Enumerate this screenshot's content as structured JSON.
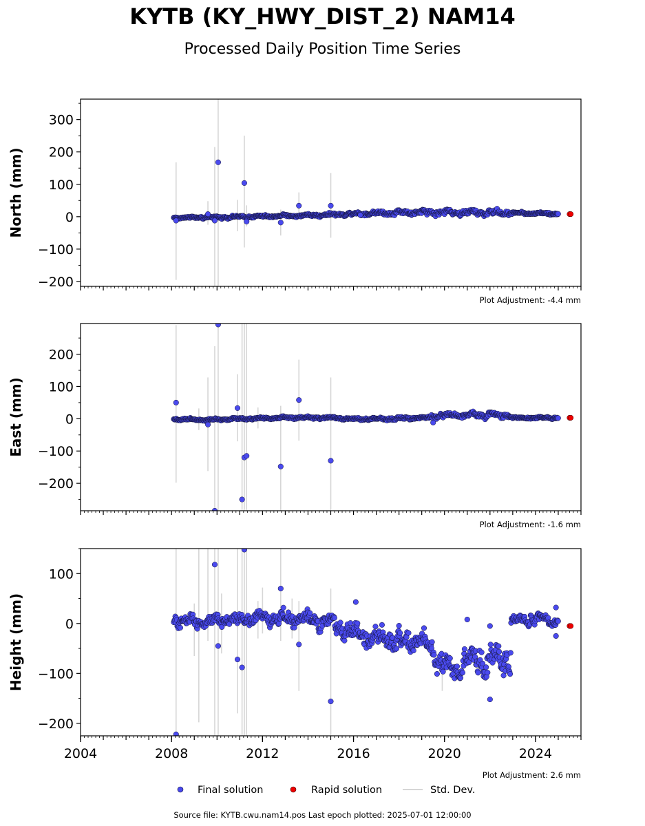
{
  "title": "KYTB (KY_HWY_DIST_2) NAM14",
  "subtitle": "Processed Daily Position Time Series",
  "legend": {
    "final": "Final solution",
    "rapid": "Rapid solution",
    "std": "Std. Dev."
  },
  "source": "Source file: KYTB.cwu.nam14.pos  Last epoch plotted: 2025-07-01 12:00:00",
  "colors": {
    "final": "#4a4aee",
    "rapid": "#ee0000",
    "std": "#d6d6d6",
    "edge": "#111133"
  },
  "chart_data": [
    {
      "type": "scatter",
      "ylabel": "North (mm)",
      "adjustment": "Plot Adjustment: -4.4 mm",
      "xlim": [
        2004,
        2026
      ],
      "ylim": [
        -215,
        363
      ],
      "yticks": [
        -200,
        -100,
        0,
        100,
        200,
        300
      ],
      "ytick_labels": [
        "−200",
        "−100",
        "0",
        "100",
        "200",
        "300"
      ],
      "trend": [
        [
          2008.1,
          -3
        ],
        [
          2010,
          -2
        ],
        [
          2012,
          1
        ],
        [
          2014,
          4
        ],
        [
          2016,
          9
        ],
        [
          2018,
          13
        ],
        [
          2019.5,
          14
        ],
        [
          2021,
          13
        ],
        [
          2022.8,
          12
        ],
        [
          2025.0,
          9
        ]
      ],
      "noise": [
        [
          2008.1,
          2.5
        ],
        [
          2016,
          4
        ],
        [
          2019.3,
          7
        ],
        [
          2022.8,
          7
        ],
        [
          2023.0,
          3
        ],
        [
          2025.0,
          3
        ]
      ],
      "outliers": [
        [
          2008.2,
          -12
        ],
        [
          2009.6,
          8
        ],
        [
          2009.9,
          -12
        ],
        [
          2010.05,
          168
        ],
        [
          2011.2,
          104
        ],
        [
          2011.3,
          -15
        ],
        [
          2012.8,
          -18
        ],
        [
          2013.6,
          34
        ],
        [
          2015.0,
          34
        ],
        [
          2016.3,
          5
        ]
      ],
      "std_bars": [
        [
          2008.2,
          -195,
          168
        ],
        [
          2009.6,
          -25,
          48
        ],
        [
          2009.9,
          -215,
          215
        ],
        [
          2010.05,
          -215,
          363
        ],
        [
          2010.9,
          -45,
          52
        ],
        [
          2011.2,
          -95,
          250
        ],
        [
          2011.3,
          -30,
          35
        ],
        [
          2012.8,
          -58,
          22
        ],
        [
          2013.6,
          -10,
          75
        ],
        [
          2015.0,
          -65,
          135
        ]
      ],
      "rapid": [
        [
          2025.5,
          8
        ],
        [
          2025.55,
          8
        ]
      ]
    },
    {
      "type": "scatter",
      "ylabel": "East (mm)",
      "adjustment": "Plot Adjustment: -1.6 mm",
      "xlim": [
        2004,
        2026
      ],
      "ylim": [
        -285,
        295
      ],
      "yticks": [
        -200,
        -100,
        0,
        100,
        200
      ],
      "ytick_labels": [
        "−200",
        "−100",
        "0",
        "100",
        "200"
      ],
      "trend": [
        [
          2008.1,
          -1
        ],
        [
          2009.5,
          -3
        ],
        [
          2011,
          0
        ],
        [
          2013,
          3
        ],
        [
          2015,
          3
        ],
        [
          2016,
          -1
        ],
        [
          2017.5,
          0
        ],
        [
          2019.2,
          3
        ],
        [
          2019.5,
          10
        ],
        [
          2021,
          12
        ],
        [
          2022.8,
          11
        ],
        [
          2023.0,
          3
        ],
        [
          2025.0,
          3
        ]
      ],
      "noise": [
        [
          2008.1,
          2.5
        ],
        [
          2019.2,
          3.5
        ],
        [
          2019.4,
          7
        ],
        [
          2022.8,
          7
        ],
        [
          2023.0,
          2.5
        ],
        [
          2025.0,
          2.5
        ]
      ],
      "outliers": [
        [
          2008.2,
          50
        ],
        [
          2009.6,
          -18
        ],
        [
          2009.9,
          -285
        ],
        [
          2010.05,
          292
        ],
        [
          2010.9,
          33
        ],
        [
          2011.1,
          -250
        ],
        [
          2011.2,
          -120
        ],
        [
          2011.3,
          -115
        ],
        [
          2012.8,
          -148
        ],
        [
          2013.6,
          58
        ],
        [
          2015.0,
          -130
        ],
        [
          2019.5,
          -12
        ]
      ],
      "std_bars": [
        [
          2008.2,
          -198,
          290
        ],
        [
          2009.2,
          -35,
          32
        ],
        [
          2009.6,
          -162,
          128
        ],
        [
          2009.9,
          -285,
          225
        ],
        [
          2010.05,
          -285,
          295
        ],
        [
          2010.9,
          -70,
          138
        ],
        [
          2011.1,
          -285,
          295
        ],
        [
          2011.2,
          -285,
          295
        ],
        [
          2011.3,
          -285,
          295
        ],
        [
          2011.8,
          -30,
          35
        ],
        [
          2012.8,
          -285,
          40
        ],
        [
          2013.6,
          -68,
          183
        ],
        [
          2015.0,
          -285,
          128
        ]
      ],
      "rapid": [
        [
          2025.5,
          3
        ],
        [
          2025.55,
          3
        ]
      ]
    },
    {
      "type": "scatter",
      "ylabel": "Height (mm)",
      "adjustment": "Plot Adjustment: 2.6 mm",
      "xlim": [
        2004,
        2026
      ],
      "ylim": [
        -225,
        150
      ],
      "yticks": [
        -200,
        -100,
        0,
        100
      ],
      "ytick_labels": [
        "−200",
        "−100",
        "0",
        "100"
      ],
      "xticks": [
        2004,
        2008,
        2012,
        2016,
        2020,
        2024
      ],
      "xtick_labels": [
        "2004",
        "2008",
        "2012",
        "2016",
        "2020",
        "2024"
      ],
      "trend": [
        [
          2008.1,
          5
        ],
        [
          2010,
          5
        ],
        [
          2012,
          12
        ],
        [
          2014,
          8
        ],
        [
          2015,
          0
        ],
        [
          2016,
          -20
        ],
        [
          2017,
          -30
        ],
        [
          2018,
          -35
        ],
        [
          2019,
          -35
        ],
        [
          2019.5,
          -55
        ],
        [
          2020.0,
          -85
        ],
        [
          2020.5,
          -90
        ],
        [
          2021,
          -75
        ],
        [
          2022,
          -75
        ],
        [
          2022.9,
          -70
        ],
        [
          2022.92,
          5
        ],
        [
          2024.0,
          10
        ],
        [
          2025.0,
          2
        ]
      ],
      "noise": [
        [
          2008.1,
          10
        ],
        [
          2015,
          12
        ],
        [
          2016,
          17
        ],
        [
          2019.4,
          17
        ],
        [
          2019.6,
          22
        ],
        [
          2022.9,
          25
        ],
        [
          2022.92,
          10
        ],
        [
          2025.0,
          10
        ]
      ],
      "outliers": [
        [
          2008.2,
          -222
        ],
        [
          2009.9,
          118
        ],
        [
          2010.05,
          -45
        ],
        [
          2010.9,
          -72
        ],
        [
          2011.1,
          -88
        ],
        [
          2011.2,
          148
        ],
        [
          2012.8,
          70
        ],
        [
          2013.6,
          -42
        ],
        [
          2015.0,
          -156
        ],
        [
          2016.1,
          43
        ],
        [
          2021.0,
          8
        ],
        [
          2022.0,
          -152
        ],
        [
          2022.0,
          -5
        ],
        [
          2024.9,
          32
        ],
        [
          2024.9,
          -25
        ]
      ],
      "std_bars": [
        [
          2008.2,
          -225,
          150
        ],
        [
          2009.0,
          -65,
          40
        ],
        [
          2009.2,
          -198,
          150
        ],
        [
          2009.6,
          -35,
          150
        ],
        [
          2009.9,
          -225,
          150
        ],
        [
          2010.05,
          -225,
          150
        ],
        [
          2010.2,
          -60,
          60
        ],
        [
          2010.9,
          -180,
          150
        ],
        [
          2011.1,
          -225,
          150
        ],
        [
          2011.2,
          -225,
          150
        ],
        [
          2011.3,
          -225,
          150
        ],
        [
          2011.8,
          -30,
          45
        ],
        [
          2012.0,
          -20,
          72
        ],
        [
          2012.8,
          -35,
          150
        ],
        [
          2013.3,
          -30,
          50
        ],
        [
          2013.6,
          -135,
          45
        ],
        [
          2015.0,
          -225,
          70
        ],
        [
          2019.9,
          -135,
          -55
        ]
      ],
      "rapid": [
        [
          2025.5,
          -5
        ],
        [
          2025.55,
          -5
        ]
      ]
    }
  ]
}
